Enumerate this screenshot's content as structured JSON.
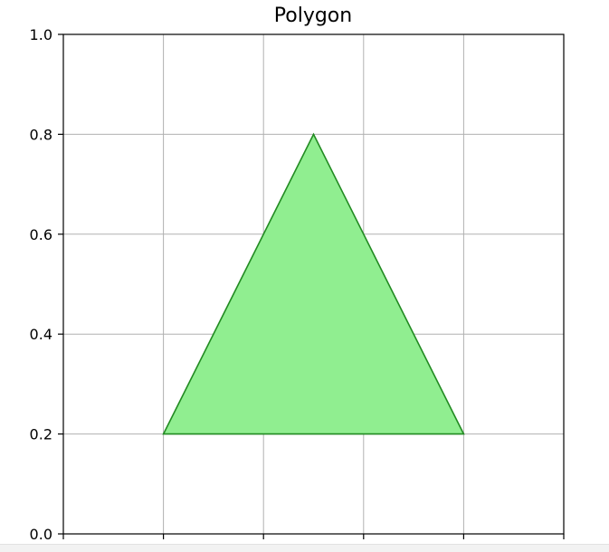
{
  "chart_data": {
    "type": "area",
    "title": "Polygon",
    "xlabel": "",
    "ylabel": "",
    "xlim": [
      0,
      1
    ],
    "ylim": [
      0,
      1
    ],
    "grid": true,
    "x_ticks": [
      0.0,
      0.2,
      0.4,
      0.6,
      0.8,
      1.0
    ],
    "y_ticks": [
      0.0,
      0.2,
      0.4,
      0.6,
      0.8,
      1.0
    ],
    "y_tick_labels": [
      "0.0",
      "0.2",
      "0.4",
      "0.6",
      "0.8",
      "1.0"
    ],
    "polygons": [
      {
        "points": [
          {
            "x": 0.2,
            "y": 0.2
          },
          {
            "x": 0.5,
            "y": 0.8
          },
          {
            "x": 0.8,
            "y": 0.2
          }
        ],
        "fill_color": "#90ee90",
        "edge_color": "#228b22"
      }
    ]
  }
}
